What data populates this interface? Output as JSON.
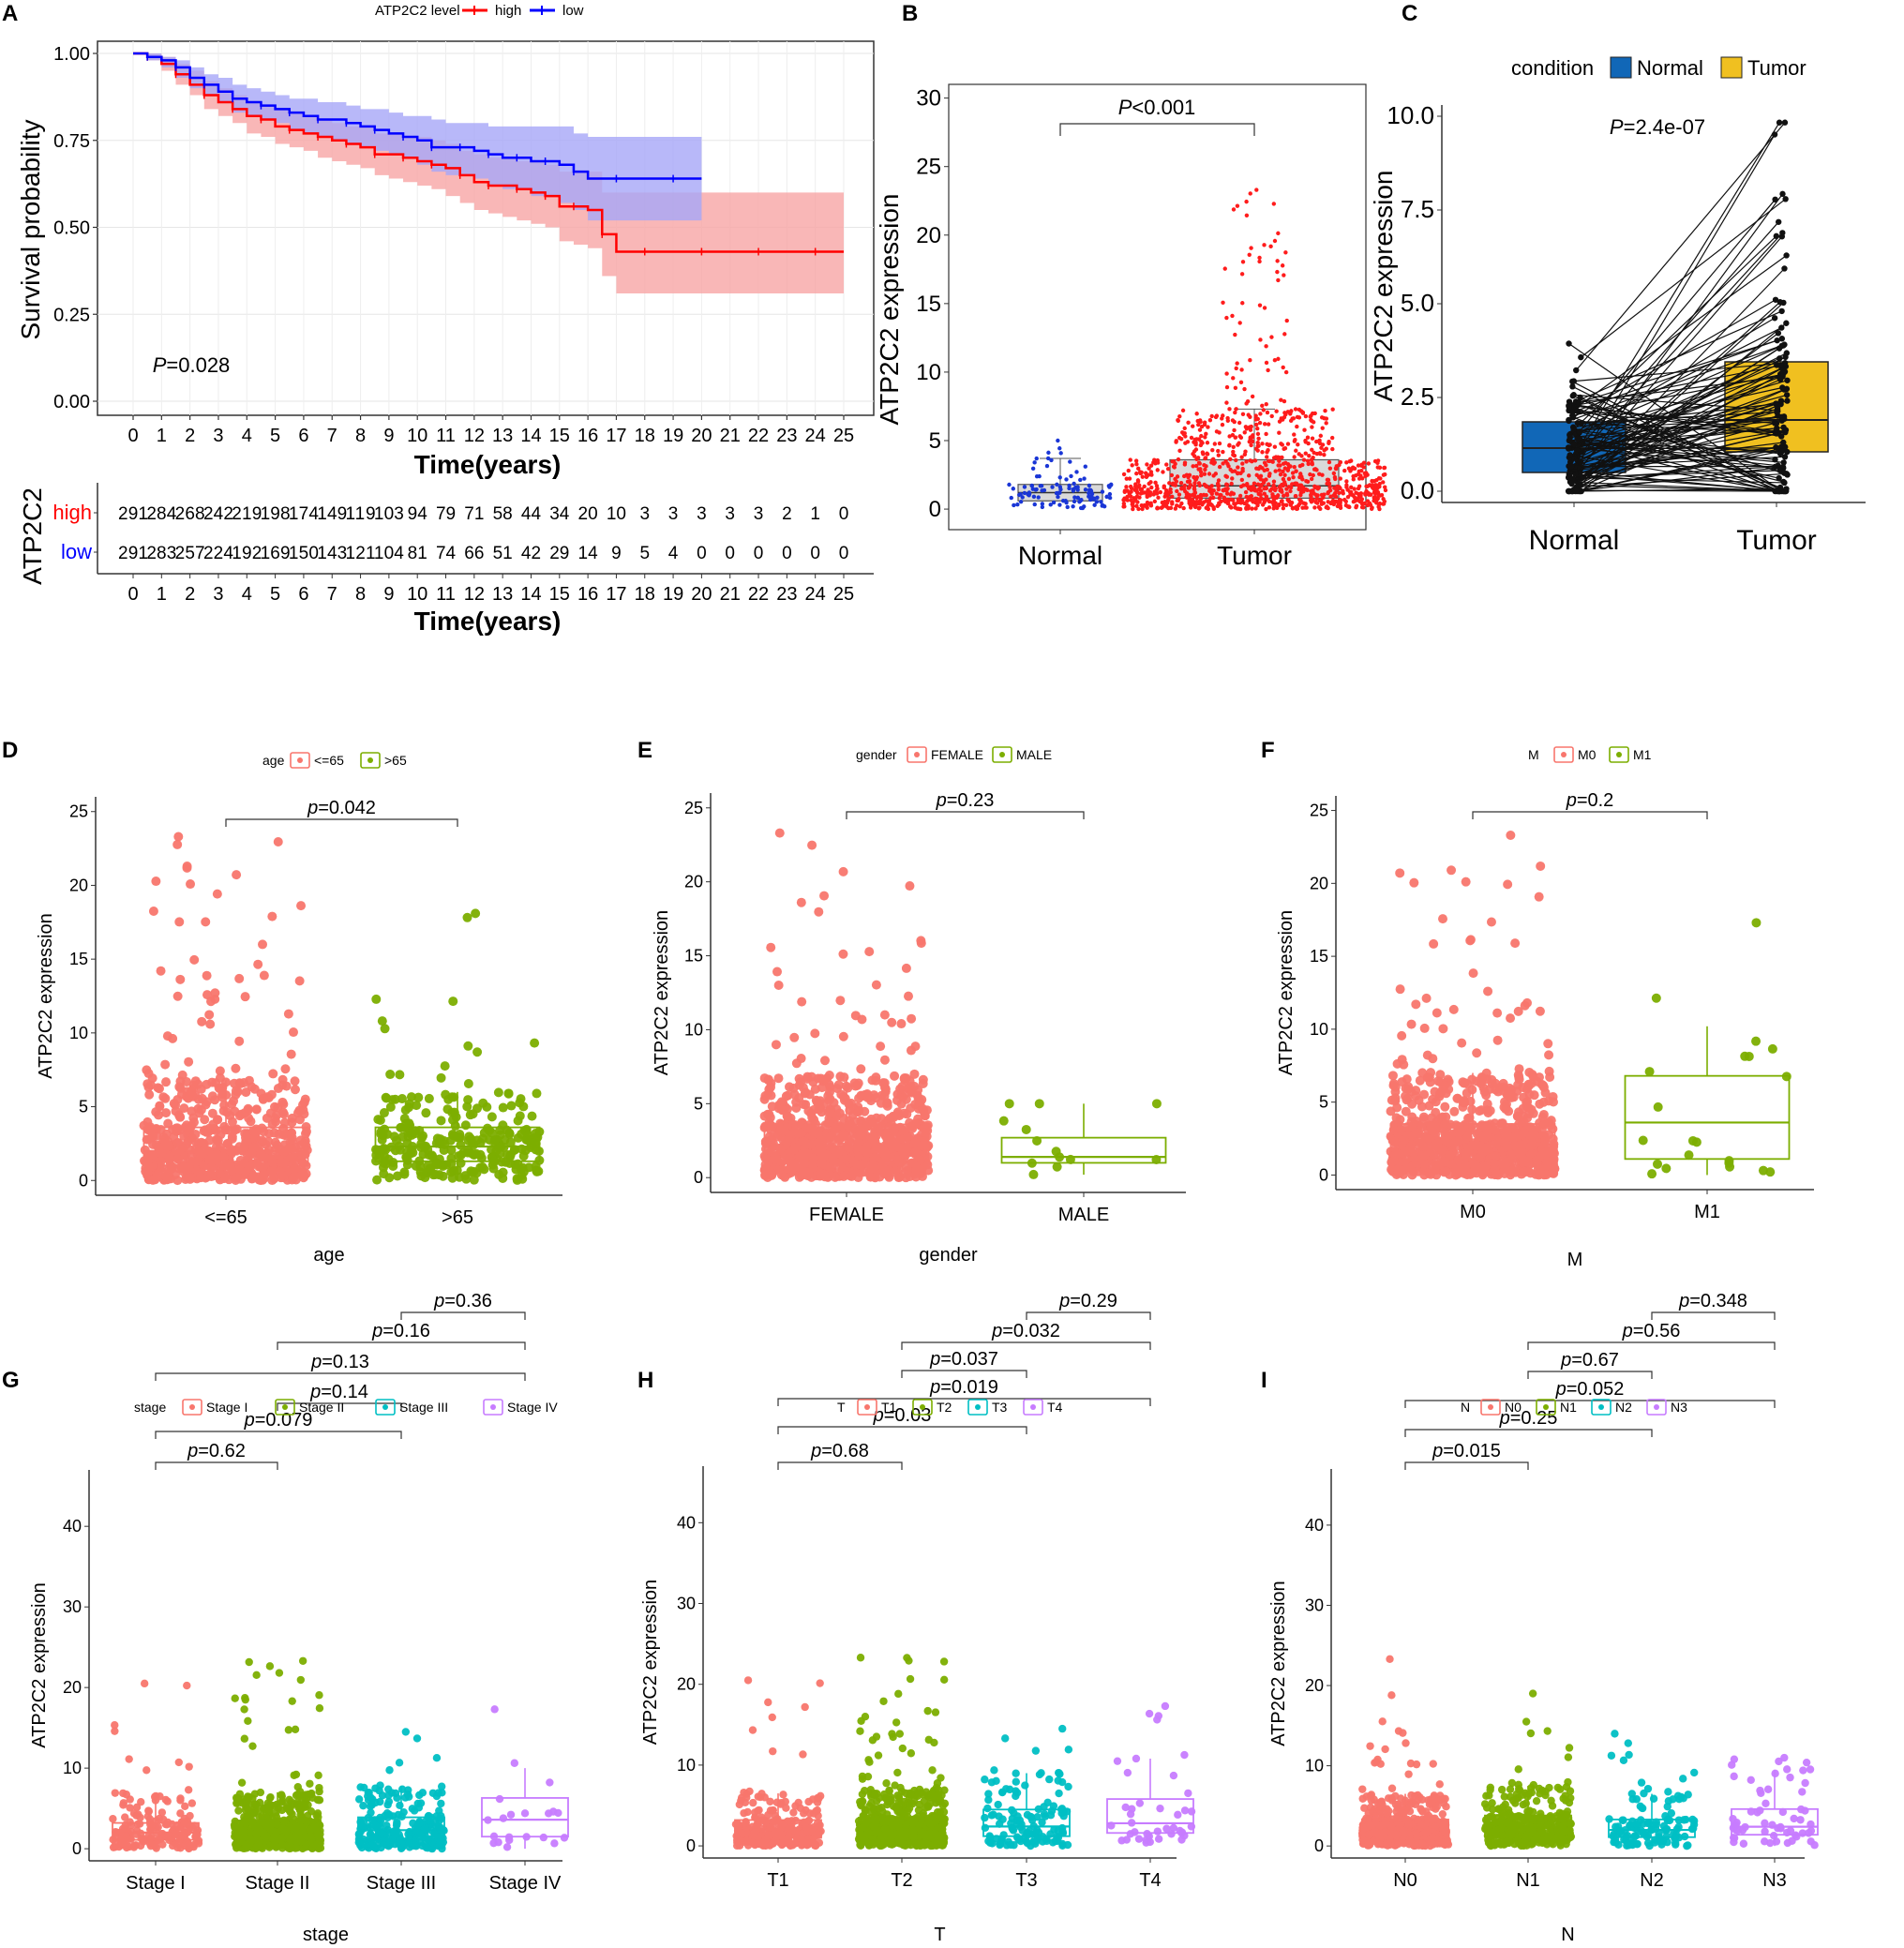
{
  "colors": {
    "high": "#ff0000",
    "low": "#0000ff",
    "highFill": "#f8a5a5",
    "lowFill": "#a6a6f7",
    "normalB": "#1a36d6",
    "tumorB": "#ff1c1c",
    "normalC": "#1167b7",
    "tumorC": "#f0c020",
    "g1": "#f8766d",
    "g2": "#7cae00",
    "g3": "#00bfc4",
    "g4": "#c77cff"
  },
  "chart_data": [
    {
      "panel": "A",
      "type": "line",
      "title": "",
      "legend_title": "ATP2C2 level",
      "legend_labels": [
        "high",
        "low"
      ],
      "xlabel": "Time(years)",
      "ylabel": "Survival probability",
      "xlim": [
        0,
        25
      ],
      "ylim": [
        0,
        1
      ],
      "x_ticks": [
        "0",
        "1",
        "2",
        "3",
        "4",
        "5",
        "6",
        "7",
        "8",
        "9",
        "10",
        "11",
        "12",
        "13",
        "14",
        "15",
        "16",
        "17",
        "18",
        "19",
        "20",
        "21",
        "22",
        "23",
        "24",
        "25"
      ],
      "y_ticks": [
        "0.00",
        "0.25",
        "0.50",
        "0.75",
        "1.00"
      ],
      "p_prefix": "P",
      "p_value": "=0.028",
      "series": [
        {
          "name": "high",
          "x": [
            0,
            0.5,
            1,
            1.5,
            2,
            2.5,
            3,
            3.5,
            4,
            4.5,
            5,
            5.5,
            6,
            6.5,
            7,
            7.5,
            8,
            8.5,
            9,
            9.5,
            10,
            10.5,
            11,
            11.5,
            12,
            12.5,
            13,
            13.5,
            14,
            14.5,
            15,
            15.5,
            16,
            16.5,
            17,
            18,
            19,
            20,
            21,
            22,
            23,
            24,
            25
          ],
          "y": [
            1,
            0.99,
            0.97,
            0.94,
            0.91,
            0.88,
            0.86,
            0.84,
            0.82,
            0.81,
            0.79,
            0.78,
            0.77,
            0.76,
            0.75,
            0.74,
            0.73,
            0.71,
            0.71,
            0.7,
            0.69,
            0.68,
            0.67,
            0.65,
            0.63,
            0.62,
            0.62,
            0.61,
            0.6,
            0.59,
            0.56,
            0.56,
            0.55,
            0.48,
            0.43,
            0.43,
            0.43,
            0.43,
            0.43,
            0.43,
            0.43,
            0.43,
            0.43
          ],
          "lower": [
            1,
            0.98,
            0.95,
            0.91,
            0.88,
            0.84,
            0.82,
            0.8,
            0.77,
            0.76,
            0.74,
            0.73,
            0.72,
            0.7,
            0.69,
            0.68,
            0.67,
            0.65,
            0.64,
            0.63,
            0.62,
            0.61,
            0.59,
            0.57,
            0.55,
            0.54,
            0.53,
            0.52,
            0.51,
            0.5,
            0.46,
            0.45,
            0.44,
            0.36,
            0.31,
            0.31,
            0.31,
            0.31,
            0.31,
            0.31,
            0.31,
            0.31,
            0.31
          ],
          "upper": [
            1,
            1,
            0.99,
            0.97,
            0.95,
            0.92,
            0.9,
            0.88,
            0.86,
            0.85,
            0.84,
            0.83,
            0.82,
            0.81,
            0.8,
            0.79,
            0.79,
            0.77,
            0.77,
            0.76,
            0.76,
            0.75,
            0.74,
            0.72,
            0.71,
            0.7,
            0.7,
            0.69,
            0.69,
            0.68,
            0.66,
            0.66,
            0.66,
            0.6,
            0.6,
            0.6,
            0.6,
            0.6,
            0.6,
            0.6,
            0.6,
            0.6,
            0.6
          ]
        },
        {
          "name": "low",
          "x": [
            0,
            0.5,
            1,
            1.5,
            2,
            2.5,
            3,
            3.5,
            4,
            4.5,
            5,
            5.5,
            6,
            6.5,
            7,
            7.5,
            8,
            8.5,
            9,
            9.5,
            10,
            10.5,
            11,
            11.5,
            12,
            12.5,
            13,
            13.5,
            14,
            14.5,
            15,
            15.5,
            16,
            17,
            18,
            19,
            20
          ],
          "y": [
            1,
            0.99,
            0.98,
            0.96,
            0.93,
            0.91,
            0.89,
            0.87,
            0.86,
            0.85,
            0.84,
            0.83,
            0.82,
            0.81,
            0.81,
            0.8,
            0.79,
            0.78,
            0.77,
            0.76,
            0.75,
            0.73,
            0.73,
            0.73,
            0.72,
            0.71,
            0.7,
            0.7,
            0.69,
            0.69,
            0.68,
            0.66,
            0.64,
            0.64,
            0.64,
            0.64,
            0.64
          ],
          "lower": [
            1,
            0.98,
            0.96,
            0.93,
            0.9,
            0.88,
            0.86,
            0.83,
            0.82,
            0.81,
            0.8,
            0.78,
            0.77,
            0.76,
            0.75,
            0.74,
            0.73,
            0.72,
            0.71,
            0.7,
            0.68,
            0.66,
            0.65,
            0.65,
            0.64,
            0.62,
            0.61,
            0.61,
            0.59,
            0.59,
            0.57,
            0.55,
            0.52,
            0.52,
            0.52,
            0.52,
            0.52
          ],
          "upper": [
            1,
            1,
            0.99,
            0.98,
            0.96,
            0.94,
            0.93,
            0.91,
            0.9,
            0.89,
            0.88,
            0.87,
            0.87,
            0.86,
            0.86,
            0.85,
            0.84,
            0.84,
            0.83,
            0.82,
            0.82,
            0.81,
            0.8,
            0.8,
            0.8,
            0.79,
            0.79,
            0.79,
            0.79,
            0.79,
            0.79,
            0.77,
            0.76,
            0.76,
            0.76,
            0.76,
            0.76
          ]
        }
      ],
      "risk_table": {
        "ylabel": "ATP2C2",
        "xlabel": "Time(years)",
        "rows": [
          {
            "name": "high",
            "counts": [
              "291",
              "284",
              "268",
              "242",
              "219",
              "198",
              "174",
              "149",
              "119",
              "103",
              "94",
              "79",
              "71",
              "58",
              "44",
              "34",
              "20",
              "10",
              "3",
              "3",
              "3",
              "3",
              "3",
              "2",
              "1",
              "0"
            ]
          },
          {
            "name": "low",
            "counts": [
              "291",
              "283",
              "257",
              "224",
              "192",
              "169",
              "150",
              "143",
              "121",
              "104",
              "81",
              "74",
              "66",
              "51",
              "42",
              "29",
              "14",
              "9",
              "5",
              "4",
              "0",
              "0",
              "0",
              "0",
              "0",
              "0"
            ]
          }
        ]
      }
    },
    {
      "panel": "B",
      "type": "box",
      "categories": [
        "Normal",
        "Tumor"
      ],
      "ylabel": "ATP2C2 expression",
      "ylim": [
        -1.5,
        31
      ],
      "y_ticks": [
        "0",
        "5",
        "10",
        "15",
        "20",
        "25",
        "30"
      ],
      "p_prefix": "P",
      "p_value": "<0.001",
      "boxes": [
        {
          "name": "Normal",
          "q1": 0.6,
          "median": 1.2,
          "q3": 1.8,
          "lower": 0,
          "upper": 3.7,
          "n": 113,
          "max": 5.0
        },
        {
          "name": "Tumor",
          "q1": 0.8,
          "median": 1.7,
          "q3": 3.6,
          "lower": 0,
          "upper": 7.3,
          "n": 1100,
          "max": 23.3
        }
      ]
    },
    {
      "panel": "C",
      "type": "box",
      "categories": [
        "Normal",
        "Tumor"
      ],
      "ylabel": "ATP2C2 expression",
      "ylim": [
        -0.3,
        10.3
      ],
      "y_ticks": [
        "0.0",
        "2.5",
        "5.0",
        "7.5",
        "10.0"
      ],
      "legend_title": "condition",
      "legend_labels": [
        "Normal",
        "Tumor"
      ],
      "p_prefix": "P",
      "p_value": "=2.4e-07",
      "boxes": [
        {
          "name": "Normal",
          "q1": 0.5,
          "median": 1.15,
          "q3": 1.85
        },
        {
          "name": "Tumor",
          "q1": 1.05,
          "median": 1.9,
          "q3": 3.45
        }
      ],
      "pairs": 112
    },
    {
      "panel": "D",
      "type": "box",
      "categories": [
        "<=65",
        ">65"
      ],
      "xlabel": "age",
      "ylabel": "ATP2C2 expression",
      "ylim": [
        -1,
        26
      ],
      "y_ticks": [
        "0",
        "5",
        "10",
        "15",
        "20",
        "25"
      ],
      "legend_title": "age",
      "legend_labels": [
        "<=65",
        ">65"
      ],
      "comparisons": [
        {
          "pair": [
            1,
            2
          ],
          "p_prefix": "p",
          "p_value": "=0.042"
        }
      ],
      "boxes": [
        {
          "q1": 1.0,
          "median": 2.0,
          "q3": 3.6,
          "lower": 0,
          "upper": 6.8,
          "n": 700,
          "max": 23.3
        },
        {
          "q1": 1.3,
          "median": 2.3,
          "q3": 3.6,
          "lower": 0,
          "upper": 6.0,
          "n": 290,
          "max": 18.1
        }
      ]
    },
    {
      "panel": "E",
      "type": "box",
      "categories": [
        "FEMALE",
        "MALE"
      ],
      "xlabel": "gender",
      "ylabel": "ATP2C2 expression",
      "ylim": [
        -1,
        26
      ],
      "y_ticks": [
        "0",
        "5",
        "10",
        "15",
        "20",
        "25"
      ],
      "legend_title": "gender",
      "legend_labels": [
        "FEMALE",
        "MALE"
      ],
      "comparisons": [
        {
          "pair": [
            1,
            2
          ],
          "p_prefix": "p",
          "p_value": "=0.23"
        }
      ],
      "boxes": [
        {
          "q1": 1.1,
          "median": 2.1,
          "q3": 3.6,
          "lower": 0,
          "upper": 6.8,
          "n": 950,
          "max": 23.3
        },
        {
          "q1": 1.0,
          "median": 1.4,
          "q3": 2.7,
          "lower": 0.2,
          "upper": 5.0,
          "n": 12,
          "max": 5.0
        }
      ]
    },
    {
      "panel": "F",
      "type": "box",
      "categories": [
        "M0",
        "M1"
      ],
      "xlabel": "M",
      "ylabel": "ATP2C2 expression",
      "ylim": [
        -1,
        26
      ],
      "y_ticks": [
        "0",
        "5",
        "10",
        "15",
        "20",
        "25"
      ],
      "legend_title": "M",
      "legend_labels": [
        "M0",
        "M1"
      ],
      "comparisons": [
        {
          "pair": [
            1,
            2
          ],
          "p_prefix": "p",
          "p_value": "=0.2"
        }
      ],
      "boxes": [
        {
          "q1": 1.1,
          "median": 2.1,
          "q3": 3.5,
          "lower": 0,
          "upper": 7.0,
          "n": 900,
          "max": 23.3
        },
        {
          "q1": 1.1,
          "median": 3.6,
          "q3": 6.8,
          "lower": 0,
          "upper": 10.2,
          "n": 20,
          "max": 17.3
        }
      ]
    },
    {
      "panel": "G",
      "type": "box",
      "categories": [
        "Stage I",
        "Stage II",
        "Stage III",
        "Stage IV"
      ],
      "xlabel": "stage",
      "ylabel": "ATP2C2 expression",
      "ylim": [
        -1.5,
        47
      ],
      "y_ticks": [
        "0",
        "10",
        "20",
        "30",
        "40"
      ],
      "legend_title": "stage",
      "legend_labels": [
        "Stage I",
        "Stage II",
        "Stage III",
        "Stage IV"
      ],
      "comparisons": [
        {
          "pair": [
            1,
            2
          ],
          "p_prefix": "p",
          "p_value": "=0.62"
        },
        {
          "pair": [
            1,
            3
          ],
          "p_prefix": "p",
          "p_value": "=0.079"
        },
        {
          "pair": [
            2,
            3
          ],
          "p_prefix": "p",
          "p_value": "=0.14"
        },
        {
          "pair": [
            1,
            4
          ],
          "p_prefix": "p",
          "p_value": "=0.13"
        },
        {
          "pair": [
            2,
            4
          ],
          "p_prefix": "p",
          "p_value": "=0.16"
        },
        {
          "pair": [
            3,
            4
          ],
          "p_prefix": "p",
          "p_value": "=0.36"
        }
      ],
      "boxes": [
        {
          "q1": 1.1,
          "median": 2.0,
          "q3": 3.2,
          "lower": 0,
          "upper": 6.5,
          "n": 180,
          "max": 20.5
        },
        {
          "q1": 1.1,
          "median": 2.1,
          "q3": 3.5,
          "lower": 0,
          "upper": 7.0,
          "n": 600,
          "max": 23.3
        },
        {
          "q1": 1.2,
          "median": 2.3,
          "q3": 3.9,
          "lower": 0,
          "upper": 7.8,
          "n": 240,
          "max": 14.5
        },
        {
          "q1": 1.5,
          "median": 3.6,
          "q3": 6.3,
          "lower": 0,
          "upper": 10.0,
          "n": 20,
          "max": 17.3
        }
      ]
    },
    {
      "panel": "H",
      "type": "box",
      "categories": [
        "T1",
        "T2",
        "T3",
        "T4"
      ],
      "xlabel": "T",
      "ylabel": "ATP2C2 expression",
      "ylim": [
        -1.5,
        47
      ],
      "y_ticks": [
        "0",
        "10",
        "20",
        "30",
        "40"
      ],
      "legend_title": "T",
      "legend_labels": [
        "T1",
        "T2",
        "T3",
        "T4"
      ],
      "comparisons": [
        {
          "pair": [
            1,
            2
          ],
          "p_prefix": "p",
          "p_value": "=0.68"
        },
        {
          "pair": [
            1,
            3
          ],
          "p_prefix": "p",
          "p_value": "=0.03"
        },
        {
          "pair": [
            1,
            4
          ],
          "p_prefix": "p",
          "p_value": "=0.019"
        },
        {
          "pair": [
            2,
            3
          ],
          "p_prefix": "p",
          "p_value": "=0.037"
        },
        {
          "pair": [
            2,
            4
          ],
          "p_prefix": "p",
          "p_value": "=0.032"
        },
        {
          "pair": [
            3,
            4
          ],
          "p_prefix": "p",
          "p_value": "=0.29"
        }
      ],
      "boxes": [
        {
          "q1": 1.0,
          "median": 2.0,
          "q3": 3.2,
          "lower": 0,
          "upper": 6.5,
          "n": 280,
          "max": 20.5
        },
        {
          "q1": 1.1,
          "median": 2.1,
          "q3": 3.5,
          "lower": 0,
          "upper": 7.0,
          "n": 630,
          "max": 23.3
        },
        {
          "q1": 1.2,
          "median": 2.4,
          "q3": 4.5,
          "lower": 0,
          "upper": 9.0,
          "n": 130,
          "max": 14.5
        },
        {
          "q1": 1.6,
          "median": 2.8,
          "q3": 5.8,
          "lower": 0.3,
          "upper": 10.8,
          "n": 40,
          "max": 17.3
        }
      ]
    },
    {
      "panel": "I",
      "type": "box",
      "categories": [
        "N0",
        "N1",
        "N2",
        "N3"
      ],
      "xlabel": "N",
      "ylabel": "ATP2C2 expression",
      "ylim": [
        -1.5,
        47
      ],
      "y_ticks": [
        "0",
        "10",
        "20",
        "30",
        "40"
      ],
      "legend_title": "N",
      "legend_labels": [
        "N0",
        "N1",
        "N2",
        "N3"
      ],
      "comparisons": [
        {
          "pair": [
            1,
            2
          ],
          "p_prefix": "p",
          "p_value": "=0.015"
        },
        {
          "pair": [
            1,
            3
          ],
          "p_prefix": "p",
          "p_value": "=0.25"
        },
        {
          "pair": [
            1,
            4
          ],
          "p_prefix": "p",
          "p_value": "=0.052"
        },
        {
          "pair": [
            2,
            3
          ],
          "p_prefix": "p",
          "p_value": "=0.67"
        },
        {
          "pair": [
            2,
            4
          ],
          "p_prefix": "p",
          "p_value": "=0.56"
        },
        {
          "pair": [
            3,
            4
          ],
          "p_prefix": "p",
          "p_value": "=0.348"
        }
      ],
      "boxes": [
        {
          "q1": 1.0,
          "median": 2.0,
          "q3": 3.3,
          "lower": 0,
          "upper": 6.5,
          "n": 500,
          "max": 23.3
        },
        {
          "q1": 1.2,
          "median": 2.3,
          "q3": 3.8,
          "lower": 0,
          "upper": 7.5,
          "n": 360,
          "max": 19.0
        },
        {
          "q1": 1.1,
          "median": 2.0,
          "q3": 3.3,
          "lower": 0,
          "upper": 6.5,
          "n": 120,
          "max": 14.0
        },
        {
          "q1": 1.4,
          "median": 2.4,
          "q3": 4.6,
          "lower": 0,
          "upper": 9.5,
          "n": 60,
          "max": 11.0
        }
      ]
    }
  ]
}
